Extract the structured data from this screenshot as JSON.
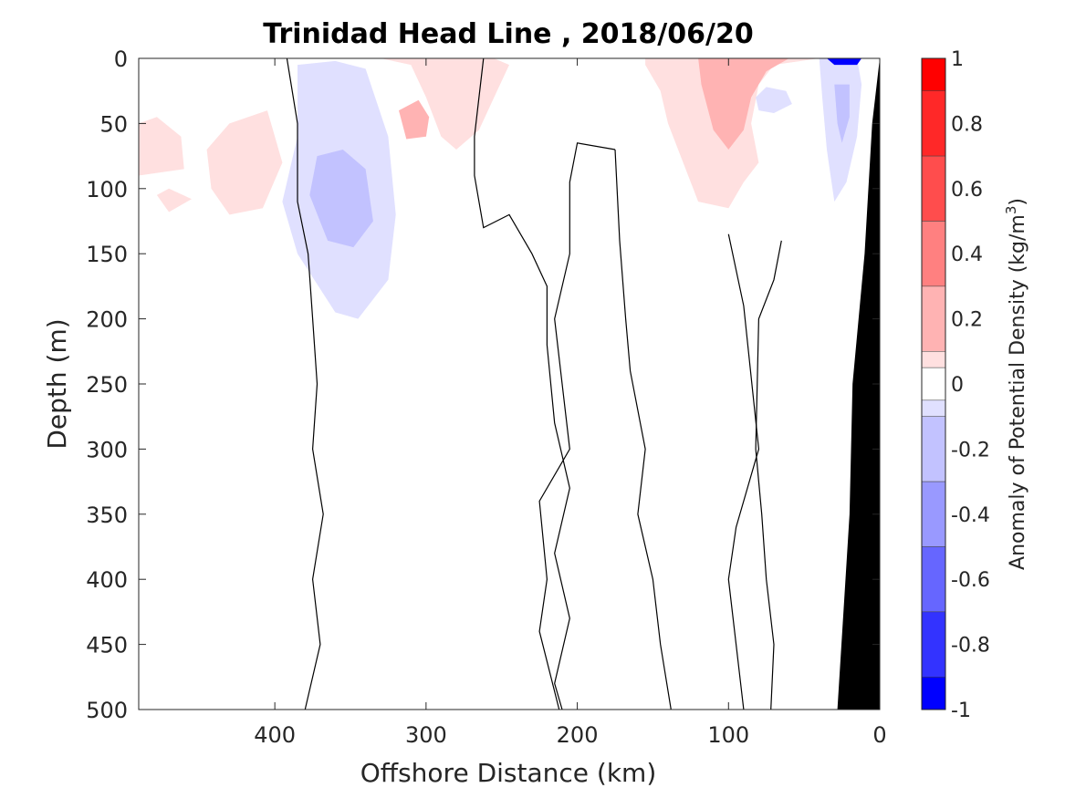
{
  "chart_data": {
    "type": "heatmap",
    "title": "Trinidad Head Line , 2018/06/20",
    "xlabel": "Offshore Distance (km)",
    "ylabel": "Depth (m)",
    "colorbar_label": "Anomaly of Potential Density (kg/m",
    "colorbar_label_superscript": "3",
    "colorbar_label_close": ")",
    "xlim": [
      490,
      0
    ],
    "ylim": [
      0,
      500
    ],
    "x_ticks": [
      400,
      300,
      200,
      100,
      0
    ],
    "y_ticks": [
      0,
      50,
      100,
      150,
      200,
      250,
      300,
      350,
      400,
      450,
      500
    ],
    "colorbar": {
      "range": [
        -1,
        1
      ],
      "ticks": [
        "1",
        "0.8",
        "0.6",
        "0.4",
        "0.2",
        "0",
        "-0.2",
        "-0.4",
        "-0.6",
        "-0.8",
        "-1"
      ],
      "bins": [
        {
          "from": 0.9,
          "to": 1.0,
          "color": "#ff0000"
        },
        {
          "from": 0.7,
          "to": 0.9,
          "color": "#ff2828"
        },
        {
          "from": 0.5,
          "to": 0.7,
          "color": "#ff4d4d"
        },
        {
          "from": 0.3,
          "to": 0.5,
          "color": "#ff8080"
        },
        {
          "from": 0.1,
          "to": 0.3,
          "color": "#ffb3b3"
        },
        {
          "from": 0.05,
          "to": 0.1,
          "color": "#ffe0e0"
        },
        {
          "from": -0.05,
          "to": 0.05,
          "color": "#ffffff"
        },
        {
          "from": -0.1,
          "to": -0.05,
          "color": "#e0e0ff"
        },
        {
          "from": -0.3,
          "to": -0.1,
          "color": "#c2c2ff"
        },
        {
          "from": -0.5,
          "to": -0.3,
          "color": "#9999ff"
        },
        {
          "from": -0.7,
          "to": -0.5,
          "color": "#6666ff"
        },
        {
          "from": -0.9,
          "to": -0.7,
          "color": "#3333ff"
        },
        {
          "from": -1.0,
          "to": -0.9,
          "color": "#0000ff"
        }
      ]
    },
    "anomaly_regions": [
      {
        "name": "positive-near-surface-offshore-460km",
        "sign": "positive",
        "level": 0.1,
        "points": [
          [
            490,
            50
          ],
          [
            478,
            45
          ],
          [
            462,
            60
          ],
          [
            460,
            85
          ],
          [
            490,
            90
          ]
        ]
      },
      {
        "name": "positive-surface-440km",
        "sign": "positive",
        "level": 0.1,
        "points": [
          [
            478,
            105
          ],
          [
            470,
            100
          ],
          [
            455,
            108
          ],
          [
            470,
            118
          ]
        ]
      },
      {
        "name": "positive-patch-420km",
        "sign": "positive",
        "level": 0.1,
        "points": [
          [
            445,
            70
          ],
          [
            430,
            50
          ],
          [
            405,
            40
          ],
          [
            395,
            80
          ],
          [
            408,
            115
          ],
          [
            430,
            120
          ],
          [
            442,
            100
          ]
        ]
      },
      {
        "name": "negative-core-360km",
        "sign": "negative",
        "level": -0.1,
        "points": [
          [
            385,
            5
          ],
          [
            360,
            2
          ],
          [
            340,
            8
          ],
          [
            325,
            60
          ],
          [
            320,
            120
          ],
          [
            325,
            170
          ],
          [
            345,
            200
          ],
          [
            360,
            195
          ],
          [
            385,
            150
          ],
          [
            395,
            110
          ],
          [
            385,
            60
          ]
        ]
      },
      {
        "name": "negative-deeper-360km",
        "sign": "negative",
        "level": -0.3,
        "points": [
          [
            372,
            75
          ],
          [
            355,
            70
          ],
          [
            340,
            85
          ],
          [
            335,
            125
          ],
          [
            348,
            145
          ],
          [
            365,
            140
          ],
          [
            377,
            105
          ]
        ]
      },
      {
        "name": "positive-surface-280km",
        "sign": "positive",
        "level": 0.1,
        "points": [
          [
            330,
            0
          ],
          [
            310,
            5
          ],
          [
            300,
            30
          ],
          [
            290,
            60
          ],
          [
            280,
            70
          ],
          [
            265,
            55
          ],
          [
            255,
            30
          ],
          [
            245,
            5
          ],
          [
            255,
            0
          ]
        ]
      },
      {
        "name": "positive-patch-310km",
        "sign": "positive",
        "level": 0.3,
        "points": [
          [
            318,
            40
          ],
          [
            305,
            32
          ],
          [
            298,
            45
          ],
          [
            300,
            60
          ],
          [
            313,
            62
          ]
        ]
      },
      {
        "name": "positive-surface-100km",
        "sign": "positive",
        "level": 0.1,
        "points": [
          [
            155,
            5
          ],
          [
            145,
            25
          ],
          [
            140,
            50
          ],
          [
            120,
            110
          ],
          [
            100,
            115
          ],
          [
            90,
            95
          ],
          [
            80,
            80
          ],
          [
            85,
            50
          ],
          [
            80,
            20
          ],
          [
            70,
            5
          ],
          [
            40,
            0
          ],
          [
            155,
            0
          ]
        ]
      },
      {
        "name": "positive-core-100km",
        "sign": "positive",
        "level": 0.3,
        "points": [
          [
            120,
            0
          ],
          [
            118,
            20
          ],
          [
            110,
            55
          ],
          [
            100,
            70
          ],
          [
            90,
            55
          ],
          [
            85,
            30
          ],
          [
            75,
            10
          ],
          [
            60,
            0
          ]
        ]
      },
      {
        "name": "negative-nearshore-35km",
        "sign": "negative",
        "level": -0.1,
        "points": [
          [
            40,
            0
          ],
          [
            38,
            30
          ],
          [
            35,
            70
          ],
          [
            30,
            110
          ],
          [
            22,
            95
          ],
          [
            15,
            60
          ],
          [
            12,
            20
          ],
          [
            15,
            0
          ]
        ]
      },
      {
        "name": "negative-nearshore-deeper",
        "sign": "negative",
        "level": -0.3,
        "points": [
          [
            30,
            20
          ],
          [
            28,
            50
          ],
          [
            25,
            65
          ],
          [
            20,
            45
          ],
          [
            20,
            20
          ]
        ]
      },
      {
        "name": "negative-surface-strong",
        "sign": "negative",
        "level": -0.9,
        "points": [
          [
            35,
            0
          ],
          [
            30,
            5
          ],
          [
            15,
            5
          ],
          [
            12,
            0
          ]
        ]
      },
      {
        "name": "negative-small-70km",
        "sign": "negative",
        "level": -0.1,
        "points": [
          [
            82,
            30
          ],
          [
            75,
            22
          ],
          [
            62,
            25
          ],
          [
            58,
            35
          ],
          [
            70,
            42
          ],
          [
            80,
            40
          ]
        ]
      }
    ],
    "zero_contours": [
      {
        "points": [
          [
            392,
            0
          ],
          [
            385,
            50
          ],
          [
            385,
            110
          ],
          [
            378,
            150
          ],
          [
            375,
            200
          ],
          [
            372,
            250
          ],
          [
            375,
            300
          ],
          [
            368,
            350
          ],
          [
            375,
            400
          ],
          [
            370,
            450
          ],
          [
            380,
            500
          ]
        ]
      },
      {
        "points": [
          [
            262,
            0
          ],
          [
            268,
            60
          ],
          [
            268,
            90
          ],
          [
            262,
            130
          ],
          [
            245,
            120
          ],
          [
            230,
            150
          ],
          [
            220,
            175
          ],
          [
            220,
            220
          ],
          [
            215,
            280
          ],
          [
            205,
            330
          ],
          [
            215,
            380
          ],
          [
            205,
            430
          ],
          [
            215,
            480
          ],
          [
            210,
            500
          ]
        ]
      },
      {
        "points": [
          [
            175,
            70
          ],
          [
            172,
            140
          ],
          [
            168,
            200
          ],
          [
            165,
            240
          ],
          [
            155,
            300
          ],
          [
            160,
            350
          ],
          [
            150,
            400
          ],
          [
            145,
            450
          ],
          [
            138,
            500
          ]
        ]
      },
      {
        "points": [
          [
            175,
            70
          ],
          [
            200,
            65
          ],
          [
            205,
            95
          ],
          [
            205,
            150
          ],
          [
            215,
            200
          ],
          [
            205,
            300
          ],
          [
            225,
            340
          ],
          [
            220,
            400
          ],
          [
            225,
            440
          ],
          [
            212,
            500
          ]
        ]
      },
      {
        "points": [
          [
            100,
            135
          ],
          [
            90,
            190
          ],
          [
            80,
            300
          ],
          [
            95,
            360
          ],
          [
            100,
            400
          ],
          [
            95,
            450
          ],
          [
            90,
            500
          ]
        ]
      },
      {
        "points": [
          [
            65,
            140
          ],
          [
            70,
            170
          ],
          [
            80,
            200
          ],
          [
            82,
            300
          ],
          [
            78,
            350
          ],
          [
            75,
            400
          ],
          [
            70,
            450
          ],
          [
            72,
            500
          ]
        ]
      }
    ],
    "bathymetry": {
      "color": "#000000",
      "points": [
        [
          0,
          0
        ],
        [
          0,
          500
        ],
        [
          28,
          500
        ],
        [
          20,
          350
        ],
        [
          18,
          250
        ],
        [
          10,
          150
        ],
        [
          5,
          50
        ],
        [
          0,
          0
        ]
      ]
    }
  }
}
